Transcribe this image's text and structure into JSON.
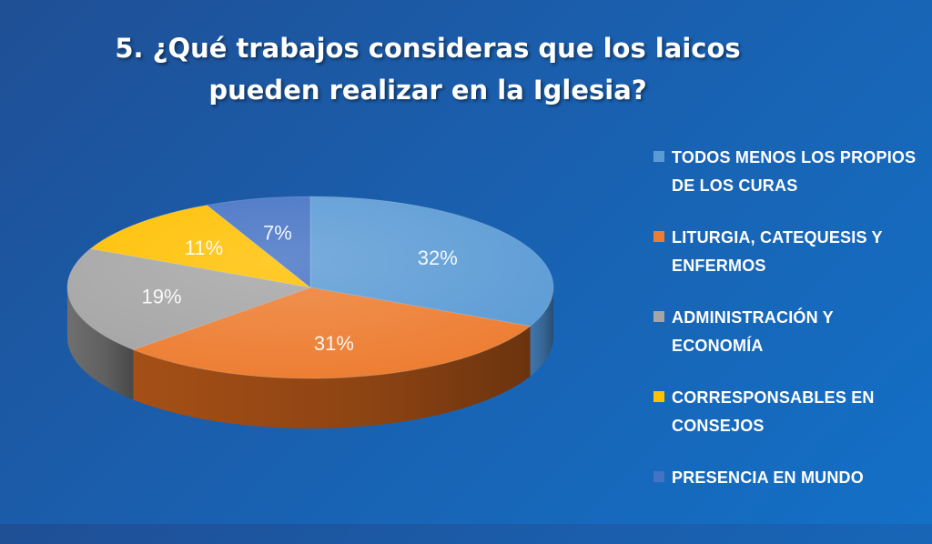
{
  "title": {
    "line1": "5. ¿Qué trabajos consideras que los laicos",
    "line2": "pueden realizar en la Iglesia?"
  },
  "chart_data": {
    "type": "pie",
    "title": "5. ¿Qué trabajos consideras que los laicos pueden realizar en la Iglesia?",
    "style": "3d",
    "legend_position": "right",
    "slices": [
      {
        "label": "TODOS MENOS LOS PROPIOS DE LOS CURAS",
        "value": 32,
        "display": "32%",
        "color": "#5b9bd5",
        "side_color": "#3f76ad"
      },
      {
        "label": "LITURGIA, CATEQUESIS Y ENFERMOS",
        "value": 31,
        "display": "31%",
        "color": "#ed7d31",
        "side_color": "#a54f16"
      },
      {
        "label": "ADMINISTRACIÓN Y ECONOMÍA",
        "value": 19,
        "display": "19%",
        "color": "#a5a5a5",
        "side_color": "#6f6f6f"
      },
      {
        "label": "CORRESPONSABLES EN CONSEJOS",
        "value": 11,
        "display": "11%",
        "color": "#ffc000",
        "side_color": "#b88a00"
      },
      {
        "label": "PRESENCIA EN MUNDO",
        "value": 7,
        "display": "7%",
        "color": "#4472c4",
        "side_color": "#2f5597"
      }
    ]
  }
}
